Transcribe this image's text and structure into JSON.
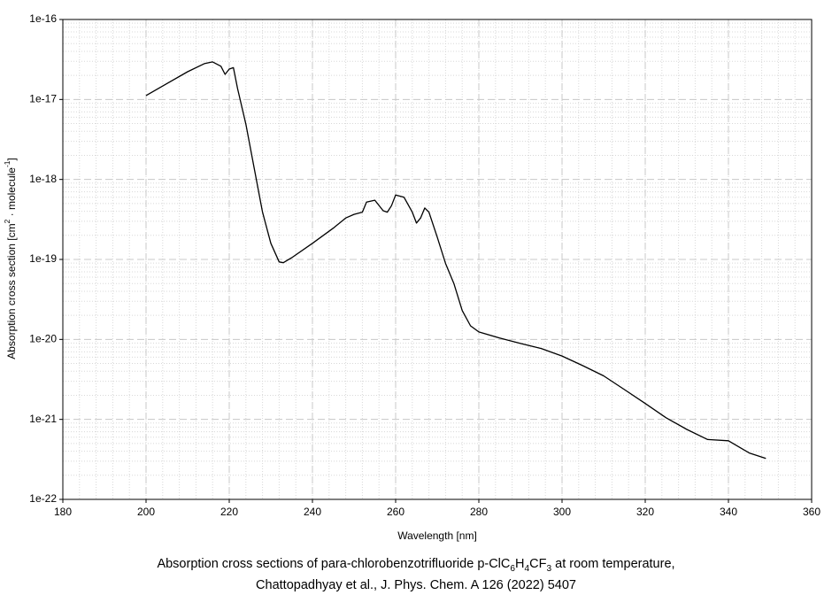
{
  "chart_data": {
    "type": "line",
    "x_label": "Wavelength [nm]",
    "y_label": [
      {
        "text": "Absorption cross section [cm"
      },
      {
        "text": "2",
        "sup": true
      },
      {
        "text": " · molecule"
      },
      {
        "text": "-1",
        "sup": true
      },
      {
        "text": "]"
      }
    ],
    "caption": [
      [
        {
          "text": "Absorption cross sections of para-chlorobenzotrifluoride p-ClC"
        },
        {
          "text": "6",
          "sub": true
        },
        {
          "text": "H"
        },
        {
          "text": "4",
          "sub": true
        },
        {
          "text": "CF"
        },
        {
          "text": "3",
          "sub": true
        },
        {
          "text": " at room temperature,"
        }
      ],
      [
        {
          "text": "Chattopadhyay et al., J. Phys. Chem. A 126 (2022) 5407"
        }
      ]
    ],
    "log_y": true,
    "grid": true,
    "minor_grid": true,
    "color": "#000000",
    "xlim": [
      180,
      360
    ],
    "xticks": [
      180,
      200,
      220,
      240,
      260,
      280,
      300,
      320,
      340,
      360
    ],
    "ylim": [
      1e-22,
      1e-16
    ],
    "yticks": [
      {
        "value": 1e-22,
        "label": "1e-22"
      },
      {
        "value": 1e-21,
        "label": "1e-21"
      },
      {
        "value": 1e-20,
        "label": "1e-20"
      },
      {
        "value": 1e-19,
        "label": "1e-19"
      },
      {
        "value": 1e-18,
        "label": "1e-18"
      },
      {
        "value": 1e-17,
        "label": "1e-17"
      },
      {
        "value": 1e-16,
        "label": "1e-16"
      }
    ],
    "x": [
      200,
      205,
      210,
      214,
      216,
      218,
      219,
      220,
      221,
      222,
      224,
      226,
      228,
      230,
      232,
      233,
      235,
      240,
      245,
      248,
      250,
      252,
      253,
      255,
      257,
      258,
      259,
      260,
      262,
      264,
      265,
      266,
      267,
      268,
      270,
      272,
      274,
      276,
      278,
      280,
      285,
      290,
      295,
      300,
      305,
      310,
      315,
      320,
      325,
      330,
      335,
      340,
      345,
      349
    ],
    "values": [
      1.12e-17,
      1.58e-17,
      2.22e-17,
      2.8e-17,
      2.95e-17,
      2.6e-17,
      2.06e-17,
      2.4e-17,
      2.5e-17,
      1.37e-17,
      4.9e-18,
      1.38e-18,
      3.9e-19,
      1.59e-19,
      9.3e-20,
      9.1e-20,
      1.05e-19,
      1.59e-19,
      2.46e-19,
      3.3e-19,
      3.66e-19,
      3.9e-19,
      5.2e-19,
      5.5e-19,
      4.06e-19,
      3.9e-19,
      4.7e-19,
      6.4e-19,
      6e-19,
      3.9e-19,
      2.85e-19,
      3.3e-19,
      4.4e-19,
      3.9e-19,
      1.9e-19,
      8.9e-20,
      5e-20,
      2.3e-20,
      1.48e-20,
      1.24e-20,
      1.04e-20,
      8.9e-21,
      7.7e-21,
      6.2e-21,
      4.7e-21,
      3.5e-21,
      2.36e-21,
      1.58e-21,
      1.05e-21,
      7.5e-22,
      5.6e-22,
      5.4e-22,
      3.8e-22,
      3.25e-22
    ]
  }
}
